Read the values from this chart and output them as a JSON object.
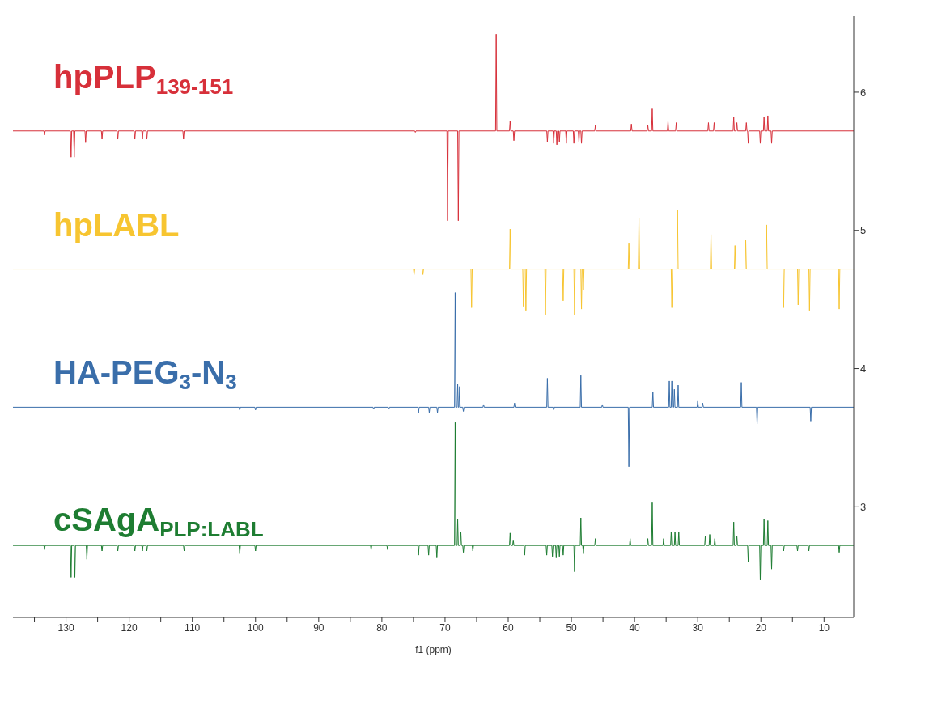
{
  "chart_data": {
    "type": "line",
    "xlabel": "f1 (ppm)",
    "xlim": [
      138.4,
      5.3
    ],
    "xticks": [
      {
        "value": 135,
        "label": null
      },
      130,
      {
        "value": 125,
        "label": null
      },
      120,
      {
        "value": 115,
        "label": null
      },
      110,
      {
        "value": 105,
        "label": null
      },
      100,
      {
        "value": 95,
        "label": null
      },
      90,
      {
        "value": 85,
        "label": null
      },
      80,
      {
        "value": 75,
        "label": null
      },
      70,
      {
        "value": 65,
        "label": null
      },
      60,
      {
        "value": 55,
        "label": null
      },
      50,
      {
        "value": 45,
        "label": null
      },
      40,
      {
        "value": 35,
        "label": null
      },
      30,
      {
        "value": 25,
        "label": null
      },
      20,
      {
        "value": 15,
        "label": null
      },
      10
    ],
    "ylim": [
      2.2,
      6.55
    ],
    "yticks": [
      3,
      4,
      5,
      6
    ],
    "grid": false,
    "marker": "none",
    "line_style": "solid",
    "series": [
      {
        "name": "hpPLP$_{139-151}$",
        "color": "#d7303a",
        "x": [
          138.4,
          133.5,
          133.4,
          133.3,
          129.3,
          129.2,
          129.1,
          128.8,
          128.7,
          128.6,
          127.0,
          126.9,
          126.8,
          124.4,
          124.3,
          124.2,
          121.9,
          121.8,
          121.7,
          119.2,
          119.1,
          119.0,
          118.0,
          117.9,
          117.8,
          117.3,
          117.2,
          117.1,
          111.5,
          111.4,
          111.3,
          74.8,
          74.7,
          74.6,
          69.7,
          69.6,
          69.5,
          68.0,
          67.9,
          67.8,
          62.0,
          61.9,
          61.8,
          59.8,
          59.7,
          59.6,
          59.2,
          59.1,
          59.0,
          53.9,
          53.8,
          53.7,
          52.9,
          52.8,
          52.7,
          52.4,
          52.3,
          52.2,
          52.0,
          51.9,
          51.8,
          50.9,
          50.8,
          50.7,
          49.7,
          49.6,
          49.5,
          48.9,
          48.8,
          48.7,
          48.5,
          48.4,
          48.3,
          46.3,
          46.2,
          46.1,
          40.6,
          40.5,
          40.4,
          38.0,
          37.9,
          37.8,
          37.3,
          37.2,
          37.1,
          34.8,
          34.7,
          34.6,
          33.5,
          33.4,
          33.3,
          28.4,
          28.3,
          28.2,
          27.5,
          27.4,
          27.3,
          24.4,
          24.3,
          24.2,
          23.9,
          23.8,
          23.7,
          22.4,
          22.3,
          22.2,
          22.1,
          22.0,
          21.9,
          20.2,
          20.1,
          20.0,
          19.6,
          19.5,
          19.4,
          19.0,
          18.9,
          18.8,
          18.4,
          18.3,
          18.2,
          5.3
        ],
        "values": [
          5.72,
          5.72,
          5.69,
          5.72,
          5.72,
          5.53,
          5.72,
          5.72,
          5.53,
          5.72,
          5.72,
          5.635,
          5.72,
          5.72,
          5.66,
          5.72,
          5.72,
          5.66,
          5.72,
          5.72,
          5.66,
          5.72,
          5.72,
          5.66,
          5.72,
          5.72,
          5.66,
          5.72,
          5.72,
          5.66,
          5.72,
          5.72,
          5.71,
          5.72,
          5.72,
          5.07,
          5.72,
          5.72,
          5.07,
          5.72,
          5.72,
          6.42,
          5.72,
          5.72,
          5.79,
          5.72,
          5.72,
          5.65,
          5.72,
          5.72,
          5.64,
          5.72,
          5.72,
          5.63,
          5.72,
          5.72,
          5.62,
          5.72,
          5.72,
          5.64,
          5.72,
          5.72,
          5.63,
          5.72,
          5.72,
          5.63,
          5.72,
          5.72,
          5.64,
          5.72,
          5.72,
          5.63,
          5.72,
          5.72,
          5.76,
          5.72,
          5.72,
          5.77,
          5.72,
          5.72,
          5.76,
          5.72,
          5.72,
          5.88,
          5.72,
          5.72,
          5.79,
          5.72,
          5.72,
          5.78,
          5.72,
          5.72,
          5.78,
          5.72,
          5.72,
          5.78,
          5.72,
          5.72,
          5.82,
          5.72,
          5.72,
          5.78,
          5.72,
          5.72,
          5.78,
          5.72,
          5.72,
          5.63,
          5.72,
          5.72,
          5.63,
          5.72,
          5.72,
          5.82,
          5.72,
          5.72,
          5.83,
          5.72,
          5.72,
          5.63,
          5.72,
          5.72
        ]
      },
      {
        "name": "hpLABL",
        "color": "#f7c531",
        "x": [
          138.4,
          75.0,
          74.9,
          74.8,
          73.6,
          73.5,
          73.4,
          65.9,
          65.8,
          65.7,
          59.8,
          59.7,
          59.6,
          57.7,
          57.6,
          57.5,
          57.3,
          57.2,
          57.1,
          54.2,
          54.1,
          54.0,
          51.4,
          51.3,
          51.2,
          49.6,
          49.5,
          49.4,
          48.5,
          48.4,
          48.3,
          48.2,
          48.1,
          48.0,
          41.0,
          40.9,
          40.8,
          39.4,
          39.3,
          39.2,
          34.2,
          34.1,
          34.0,
          33.3,
          33.2,
          33.1,
          28.0,
          27.9,
          27.8,
          24.2,
          24.1,
          24.0,
          22.5,
          22.4,
          22.3,
          19.2,
          19.1,
          19.0,
          16.5,
          16.4,
          16.3,
          14.2,
          14.1,
          14.0,
          12.4,
          12.3,
          12.2,
          7.7,
          7.6,
          7.5,
          5.3
        ],
        "values": [
          4.72,
          4.72,
          4.68,
          4.72,
          4.72,
          4.68,
          4.72,
          4.72,
          4.44,
          4.72,
          4.72,
          5.01,
          4.72,
          4.72,
          4.45,
          4.72,
          4.72,
          4.42,
          4.72,
          4.72,
          4.39,
          4.72,
          4.72,
          4.49,
          4.72,
          4.72,
          4.39,
          4.72,
          4.72,
          4.43,
          4.72,
          4.72,
          4.57,
          4.72,
          4.72,
          4.91,
          4.72,
          4.72,
          5.09,
          4.72,
          4.72,
          4.44,
          4.72,
          4.72,
          5.15,
          4.72,
          4.72,
          4.97,
          4.72,
          4.72,
          4.89,
          4.72,
          4.72,
          4.93,
          4.72,
          4.72,
          5.04,
          4.72,
          4.72,
          4.44,
          4.72,
          4.72,
          4.46,
          4.72,
          4.72,
          4.42,
          4.72,
          4.72,
          4.43,
          4.72,
          4.72
        ]
      },
      {
        "name": "HA-PEG$_{3}$-N$_{3}$",
        "color": "#3a6eaa",
        "x": [
          138.4,
          102.6,
          102.5,
          102.4,
          100.1,
          100.0,
          99.9,
          81.4,
          81.3,
          81.2,
          79.0,
          78.9,
          78.8,
          74.3,
          74.2,
          74.1,
          72.6,
          72.5,
          72.4,
          71.3,
          71.2,
          71.1,
          68.5,
          68.4,
          68.3,
          68.1,
          68.0,
          67.9,
          67.8,
          67.7,
          67.6,
          67.2,
          67.1,
          67.0,
          64.0,
          63.9,
          63.8,
          59.1,
          59.0,
          58.9,
          53.9,
          53.8,
          53.7,
          52.9,
          52.8,
          52.7,
          48.6,
          48.5,
          48.4,
          45.2,
          45.1,
          45.0,
          41.0,
          40.9,
          40.8,
          37.2,
          37.1,
          37.0,
          34.6,
          34.5,
          34.4,
          34.2,
          34.1,
          34.0,
          33.8,
          33.7,
          33.6,
          33.2,
          33.1,
          33.0,
          30.1,
          30.0,
          29.9,
          29.3,
          29.2,
          29.1,
          23.2,
          23.1,
          23.0,
          20.7,
          20.6,
          20.5,
          12.2,
          12.1,
          12.0,
          5.3
        ],
        "values": [
          3.72,
          3.72,
          3.7,
          3.72,
          3.72,
          3.7,
          3.72,
          3.72,
          3.705,
          3.72,
          3.72,
          3.705,
          3.72,
          3.72,
          3.68,
          3.72,
          3.72,
          3.68,
          3.72,
          3.72,
          3.68,
          3.72,
          3.72,
          4.55,
          3.72,
          3.72,
          3.89,
          3.72,
          3.72,
          3.87,
          3.72,
          3.72,
          3.69,
          3.72,
          3.72,
          3.74,
          3.72,
          3.72,
          3.75,
          3.72,
          3.72,
          3.93,
          3.72,
          3.72,
          3.7,
          3.72,
          3.72,
          3.95,
          3.72,
          3.72,
          3.74,
          3.72,
          3.72,
          3.29,
          3.72,
          3.72,
          3.83,
          3.72,
          3.72,
          3.91,
          3.72,
          3.72,
          3.91,
          3.72,
          3.72,
          3.85,
          3.72,
          3.72,
          3.88,
          3.72,
          3.72,
          3.77,
          3.72,
          3.72,
          3.75,
          3.72,
          3.72,
          3.9,
          3.72,
          3.72,
          3.6,
          3.72,
          3.72,
          3.62,
          3.72,
          3.72
        ]
      },
      {
        "name": "cSAgA$_{PLP:LABL}$",
        "color": "#1e7d32",
        "x": [
          138.4,
          133.5,
          133.4,
          133.3,
          129.3,
          129.2,
          129.1,
          128.7,
          128.6,
          128.5,
          126.8,
          126.7,
          126.6,
          124.4,
          124.3,
          124.2,
          121.9,
          121.8,
          121.7,
          119.2,
          119.1,
          119.0,
          118.0,
          117.9,
          117.8,
          117.3,
          117.2,
          117.1,
          111.4,
          111.3,
          111.2,
          102.6,
          102.5,
          102.4,
          100.1,
          100.0,
          99.9,
          81.8,
          81.7,
          81.6,
          79.2,
          79.1,
          79.0,
          74.3,
          74.2,
          74.1,
          72.7,
          72.6,
          72.5,
          71.4,
          71.3,
          71.2,
          68.5,
          68.4,
          68.3,
          68.1,
          68.0,
          67.9,
          67.6,
          67.5,
          67.4,
          67.2,
          67.1,
          67.0,
          65.7,
          65.6,
          65.5,
          59.8,
          59.7,
          59.6,
          59.3,
          59.2,
          59.1,
          57.5,
          57.4,
          57.3,
          54.0,
          53.9,
          53.8,
          53.1,
          53.0,
          52.9,
          52.5,
          52.4,
          52.3,
          52.0,
          51.9,
          51.8,
          51.4,
          51.3,
          51.2,
          49.6,
          49.5,
          49.4,
          48.6,
          48.5,
          48.4,
          48.2,
          48.1,
          48.0,
          46.3,
          46.2,
          46.1,
          40.8,
          40.7,
          40.6,
          38.0,
          37.9,
          37.8,
          37.3,
          37.2,
          37.1,
          35.5,
          35.4,
          35.3,
          34.3,
          34.2,
          34.1,
          33.7,
          33.6,
          33.5,
          33.1,
          33.0,
          32.9,
          28.9,
          28.8,
          28.7,
          28.2,
          28.1,
          28.0,
          27.4,
          27.3,
          27.2,
          24.4,
          24.3,
          24.2,
          23.9,
          23.8,
          23.7,
          22.1,
          22.0,
          21.9,
          20.2,
          20.1,
          20.0,
          19.6,
          19.5,
          19.4,
          19.0,
          18.9,
          18.8,
          18.4,
          18.3,
          18.2,
          16.5,
          16.4,
          16.3,
          14.3,
          14.2,
          14.1,
          12.5,
          12.4,
          12.3,
          7.7,
          7.6,
          7.5,
          5.3
        ],
        "values": [
          2.72,
          2.72,
          2.69,
          2.72,
          2.72,
          2.49,
          2.72,
          2.72,
          2.49,
          2.72,
          2.72,
          2.62,
          2.72,
          2.72,
          2.68,
          2.72,
          2.72,
          2.68,
          2.72,
          2.72,
          2.68,
          2.72,
          2.72,
          2.68,
          2.72,
          2.72,
          2.68,
          2.72,
          2.72,
          2.68,
          2.72,
          2.72,
          2.66,
          2.72,
          2.72,
          2.68,
          2.72,
          2.72,
          2.69,
          2.72,
          2.72,
          2.69,
          2.72,
          2.72,
          2.65,
          2.72,
          2.72,
          2.65,
          2.72,
          2.72,
          2.63,
          2.72,
          2.72,
          3.61,
          2.72,
          2.72,
          2.91,
          2.72,
          2.72,
          2.82,
          2.72,
          2.72,
          2.67,
          2.72,
          2.72,
          2.68,
          2.72,
          2.72,
          2.81,
          2.72,
          2.72,
          2.76,
          2.72,
          2.72,
          2.65,
          2.72,
          2.72,
          2.65,
          2.72,
          2.72,
          2.64,
          2.72,
          2.72,
          2.63,
          2.72,
          2.72,
          2.64,
          2.72,
          2.72,
          2.65,
          2.72,
          2.72,
          2.53,
          2.72,
          2.72,
          2.92,
          2.72,
          2.72,
          2.66,
          2.72,
          2.72,
          2.77,
          2.72,
          2.72,
          2.77,
          2.72,
          2.72,
          2.77,
          2.72,
          2.72,
          3.03,
          2.72,
          2.72,
          2.77,
          2.72,
          2.72,
          2.82,
          2.72,
          2.72,
          2.82,
          2.72,
          2.72,
          2.82,
          2.72,
          2.72,
          2.79,
          2.72,
          2.72,
          2.8,
          2.72,
          2.72,
          2.77,
          2.72,
          2.72,
          2.89,
          2.72,
          2.72,
          2.79,
          2.72,
          2.72,
          2.6,
          2.72,
          2.72,
          2.47,
          2.72,
          2.72,
          2.91,
          2.72,
          2.72,
          2.9,
          2.72,
          2.72,
          2.55,
          2.72,
          2.72,
          2.68,
          2.72,
          2.72,
          2.68,
          2.72,
          2.72,
          2.68,
          2.72,
          2.72,
          2.67,
          2.72,
          2.72
        ]
      }
    ]
  }
}
